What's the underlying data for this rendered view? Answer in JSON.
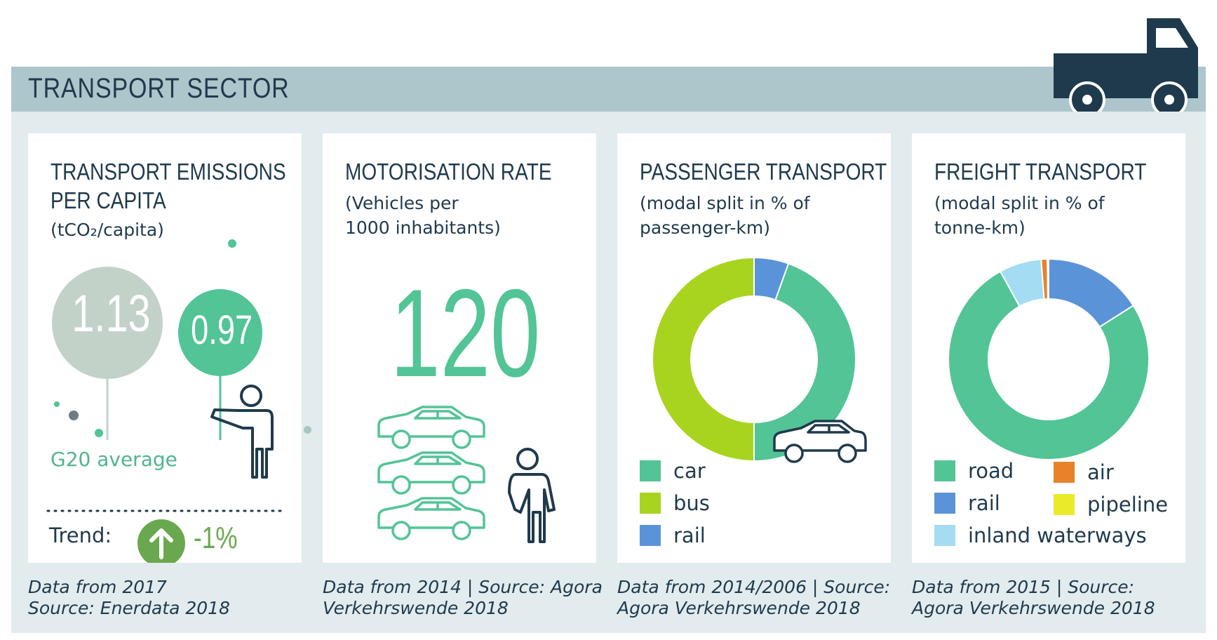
{
  "header": {
    "title": "TRANSPORT SECTOR"
  },
  "colors": {
    "band": "#adc6cc",
    "panel": "#e2ebed",
    "navy": "#1f3a4d",
    "green": "#52c496",
    "lime": "#a8d41f",
    "blue": "#5b93d8",
    "lightblue": "#a4dcf4",
    "orange": "#e8822a",
    "yellow": "#eaea2a",
    "grey_balloon": "#c3d2c9",
    "trend_green": "#6aa84f"
  },
  "icons": [
    "truck-icon",
    "balloon-icon",
    "person-icon",
    "car-icon",
    "arrow-up-icon"
  ],
  "emissions": {
    "title": "TRANSPORT EMISSIONS\nPER CAPITA",
    "unit": "(tCO₂/capita)",
    "g20_value": "1.13",
    "country_value": "0.97",
    "g20_label": "G20 average",
    "trend_label": "Trend:",
    "trend_value": "-1%",
    "footnote": "Data from 2017\nSource: Enerdata 2018"
  },
  "motorisation": {
    "title": "MOTORISATION RATE",
    "unit": "(Vehicles per\n1000 inhabitants)",
    "value": "120",
    "footnote": "Data from 2014 | Source: Agora\nVerkehrswende 2018"
  },
  "passenger": {
    "title": "PASSENGER TRANSPORT",
    "unit": "(modal split in % of\npassenger-km)",
    "legend": [
      "car",
      "bus",
      "rail"
    ],
    "footnote": "Data from 2014/2006 | Source:\nAgora Verkehrswende 2018"
  },
  "freight": {
    "title": "FREIGHT TRANSPORT",
    "unit": "(modal split in % of\ntonne-km)",
    "legend": [
      "road",
      "air",
      "rail",
      "pipeline",
      "inland waterways"
    ],
    "footnote": "Data from 2015 | Source:\nAgora Verkehrswende 2018"
  },
  "chart_data": [
    {
      "type": "pie",
      "title": "PASSENGER TRANSPORT",
      "categories": [
        "rail",
        "car",
        "bus"
      ],
      "values": [
        5.5,
        44.5,
        50
      ],
      "colors": [
        "#5b93d8",
        "#52c496",
        "#a8d41f"
      ]
    },
    {
      "type": "pie",
      "title": "FREIGHT TRANSPORT",
      "categories": [
        "rail",
        "road",
        "inland waterways",
        "air",
        "pipeline"
      ],
      "values": [
        16,
        76,
        6.8,
        1,
        0.2
      ],
      "colors": [
        "#5b93d8",
        "#52c496",
        "#a4dcf4",
        "#e8822a",
        "#eaea2a"
      ]
    }
  ]
}
